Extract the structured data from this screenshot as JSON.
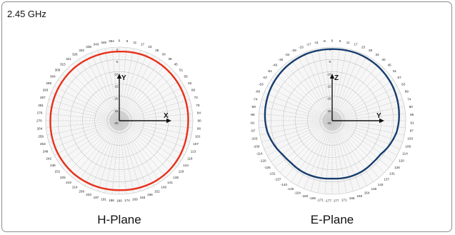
{
  "frequency_label": "2.45 GHz",
  "chart_data": [
    {
      "type": "polar-line",
      "title": "H-Plane",
      "angle_ticks": [
        0,
        6,
        11,
        17,
        23,
        28,
        34,
        39,
        45,
        51,
        56,
        62,
        68,
        73,
        79,
        84,
        90,
        96,
        101,
        107,
        113,
        118,
        124,
        129,
        135,
        141,
        146,
        152,
        158,
        163,
        169,
        174,
        180,
        186,
        191,
        197,
        203,
        208,
        214,
        219,
        225,
        231,
        236,
        242,
        248,
        253,
        259,
        264,
        270,
        276,
        281,
        287,
        293,
        298,
        304,
        309,
        315,
        321,
        326,
        332,
        338,
        343,
        349,
        354
      ],
      "radial_ticks": [
        "0",
        "-5",
        "-10",
        "-15",
        "-20",
        "-25",
        "-30"
      ],
      "radial_range_db": [
        -30,
        0
      ],
      "axis_labels": {
        "horizontal": "X",
        "vertical": "Y"
      },
      "series": [
        {
          "color": "#e8301a",
          "angles_deg": [
            0,
            20,
            40,
            60,
            80,
            90,
            100,
            120,
            135,
            150,
            165,
            180,
            200,
            220,
            240,
            260,
            270,
            280,
            300,
            320,
            340,
            360
          ],
          "gain_db": [
            -1.8,
            -1.5,
            -1.5,
            -1.6,
            -1.8,
            -1.9,
            -1.9,
            -1.5,
            -1.3,
            -1.3,
            -1.5,
            -1.7,
            -1.6,
            -1.5,
            -1.6,
            -1.8,
            -1.9,
            -1.9,
            -1.8,
            -1.7,
            -1.8,
            -1.8
          ]
        }
      ]
    },
    {
      "type": "polar-line",
      "title": "E-Plane",
      "angle_ticks": [
        0,
        6,
        11,
        17,
        23,
        28,
        34,
        40,
        45,
        51,
        57,
        63,
        69,
        74,
        80,
        86,
        91,
        97,
        103,
        109,
        114,
        120,
        126,
        131,
        137,
        143,
        149,
        154,
        160,
        166,
        171,
        177,
        -177,
        -171,
        -166,
        -160,
        -154,
        -149,
        -143,
        -137,
        -131,
        -126,
        -120,
        -114,
        -109,
        -103,
        -97,
        -91,
        -86,
        -80,
        -74,
        -69,
        -63,
        -57,
        -51,
        -46,
        -40,
        -34,
        -29,
        -23,
        -17,
        -11,
        -6
      ],
      "radial_ticks": [
        "0",
        "-5",
        "-10",
        "-15",
        "-20",
        "-25",
        "-30"
      ],
      "radial_range_db": [
        -30,
        0
      ],
      "axis_labels": {
        "horizontal": "Y",
        "vertical": "Z"
      },
      "series": [
        {
          "color": "#163d6e",
          "angles_deg": [
            0,
            20,
            40,
            60,
            80,
            90,
            100,
            115,
            125,
            135,
            150,
            165,
            180,
            195,
            210,
            225,
            235,
            245,
            260,
            270,
            280,
            300,
            320,
            340,
            360
          ],
          "gain_db": [
            -0.8,
            -0.7,
            -1.0,
            -1.6,
            -2.4,
            -2.8,
            -3.3,
            -4.8,
            -6.0,
            -6.2,
            -6.0,
            -6.1,
            -6.4,
            -6.1,
            -5.9,
            -6.0,
            -5.6,
            -4.6,
            -3.2,
            -2.7,
            -2.3,
            -1.6,
            -1.1,
            -0.8,
            -0.8
          ]
        }
      ]
    }
  ]
}
